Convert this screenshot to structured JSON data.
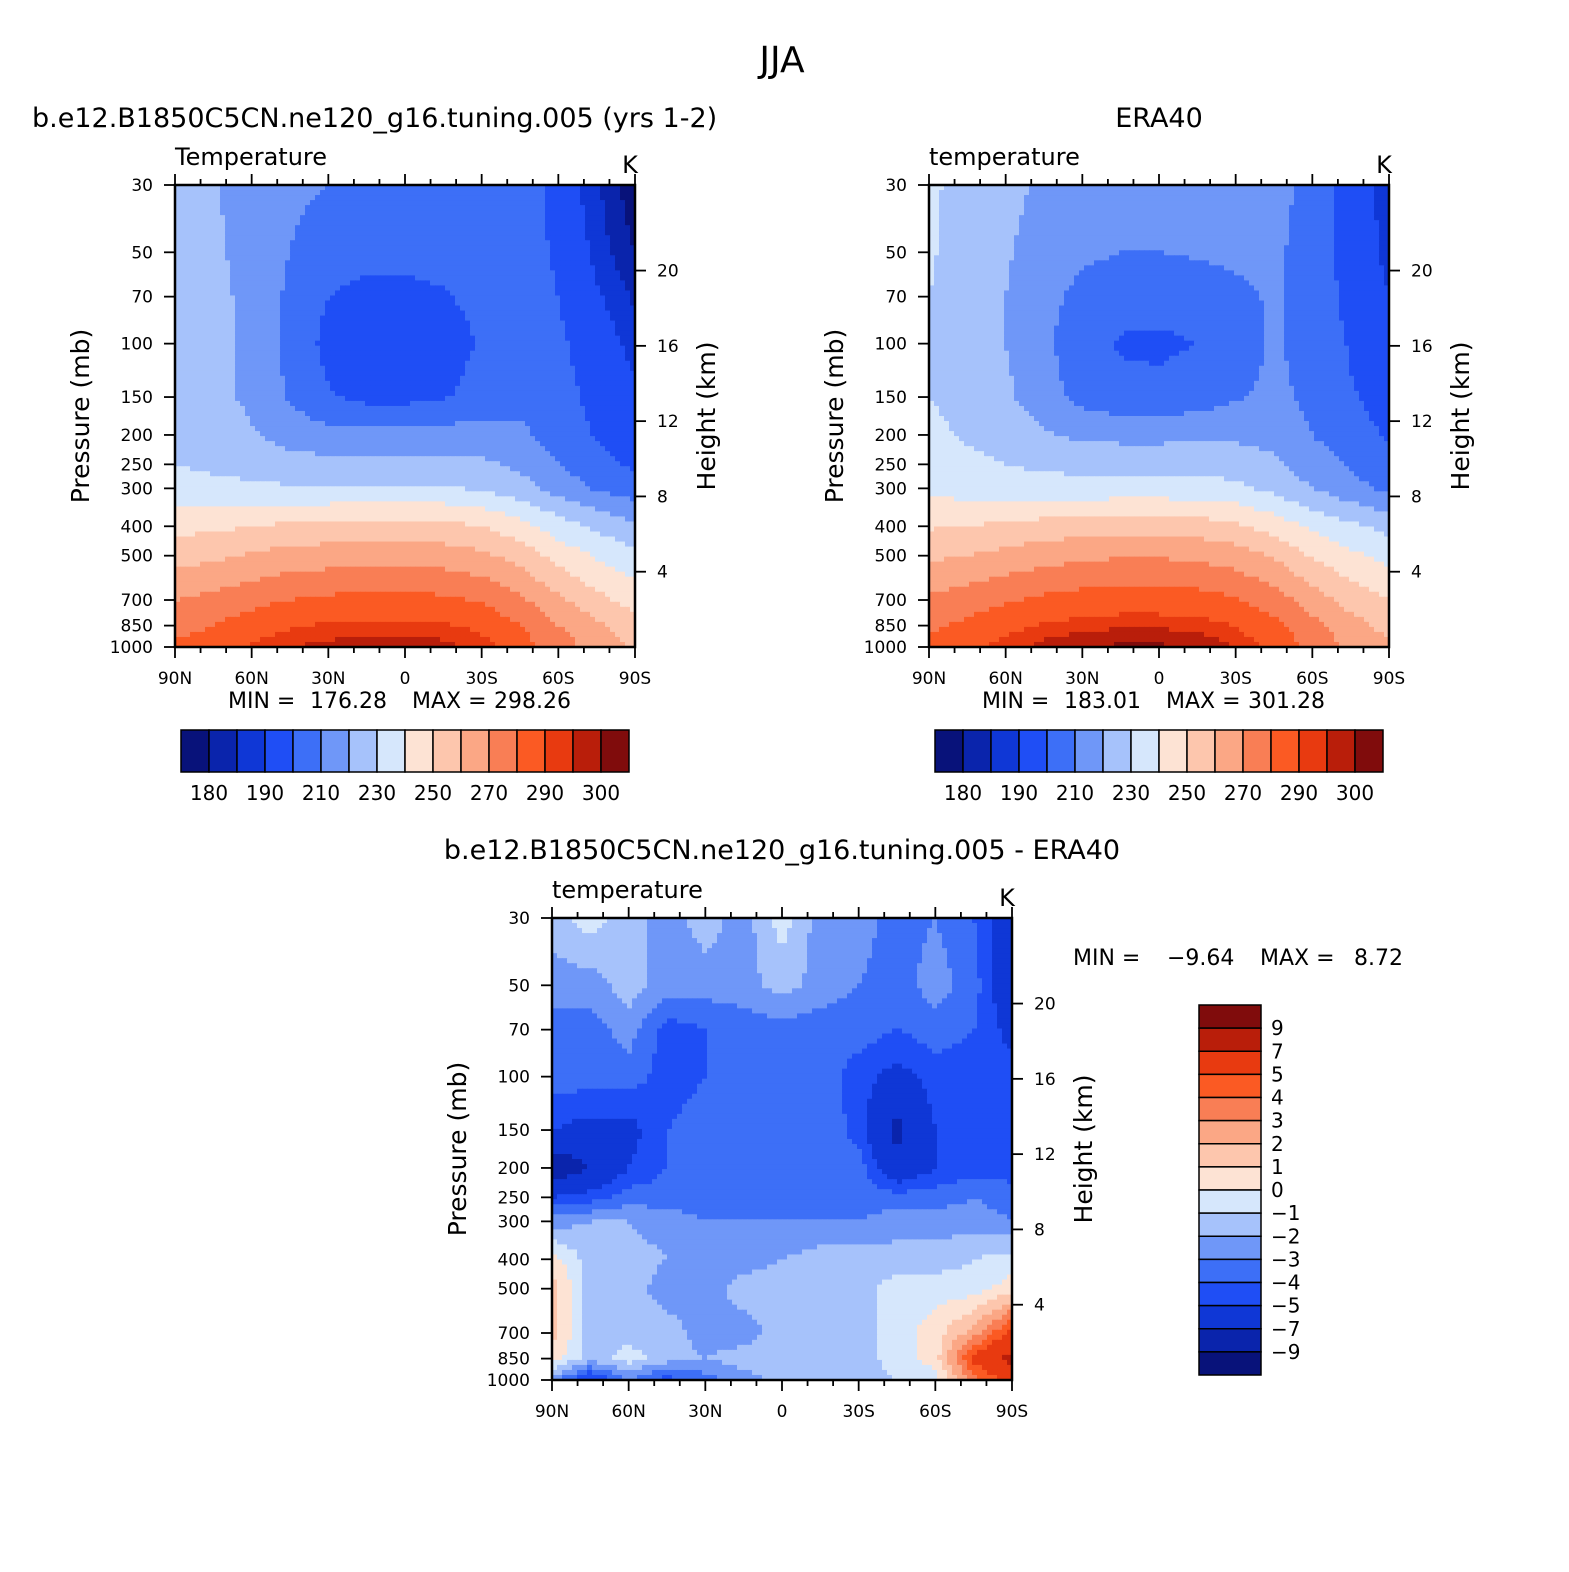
{
  "figure": {
    "title": "JJA"
  },
  "panel_titles": {
    "model": "b.e12.B1850C5CN.ne120_g16.tuning.005 (yrs 1-2)",
    "obs": "ERA40",
    "diff": "b.e12.B1850C5CN.ne120_g16.tuning.005 - ERA40"
  },
  "palettes": {
    "abs": [
      "#08127a",
      "#0a24ac",
      "#0f37d6",
      "#1f4ef5",
      "#3d6ff7",
      "#6f97f8",
      "#a6c2fb",
      "#d6e7fc",
      "#fde3d4",
      "#fdc6ad",
      "#fba785",
      "#f97e55",
      "#fb5a23",
      "#e83a10",
      "#b91e0a",
      "#800c0c"
    ],
    "diff": [
      "#08127a",
      "#0a24ac",
      "#0f37d6",
      "#1f4ef5",
      "#3d6ff7",
      "#6f97f8",
      "#a6c2fb",
      "#d6e7fc",
      "#fde3d4",
      "#fdc6ad",
      "#fba785",
      "#f97e55",
      "#fb5a23",
      "#e83a10",
      "#b91e0a",
      "#800c0c"
    ]
  },
  "colorbars": {
    "abs_labels": [
      "180",
      "190",
      "210",
      "230",
      "250",
      "270",
      "290",
      "300"
    ],
    "diff_labels": [
      "9",
      "7",
      "5",
      "4",
      "3",
      "2",
      "1",
      "0",
      "−1",
      "−2",
      "−3",
      "−4",
      "−5",
      "−7",
      "−9"
    ]
  },
  "chart_data": [
    {
      "type": "heatmap",
      "id": "model",
      "title": "b.e12.B1850C5CN.ne120_g16.tuning.005 (yrs 1-2)",
      "variable": "Temperature",
      "units": "K",
      "ylabel": "Pressure (mb)",
      "y2label": "Height (km)",
      "x_ticks": [
        "90N",
        "60N",
        "30N",
        "0",
        "30S",
        "60S",
        "90S"
      ],
      "y_ticks": [
        "30",
        "50",
        "70",
        "100",
        "150",
        "200",
        "250",
        "300",
        "400",
        "500",
        "700",
        "850",
        "1000"
      ],
      "y2_ticks": [
        "20",
        "16",
        "12",
        "8",
        "4"
      ],
      "min": "176.28",
      "max": "298.26",
      "min_label": "MIN =",
      "max_label": "MAX =",
      "levels": [
        180,
        185,
        190,
        200,
        210,
        220,
        230,
        240,
        250,
        260,
        270,
        280,
        290,
        295,
        300
      ],
      "x_lat": [
        90,
        75,
        60,
        45,
        30,
        15,
        0,
        -15,
        -30,
        -45,
        -60,
        -75,
        -90
      ],
      "y_pressure": [
        30,
        50,
        70,
        100,
        150,
        200,
        250,
        300,
        400,
        500,
        700,
        850,
        1000
      ],
      "z": [
        [
          226,
          221,
          215,
          212,
          210,
          209,
          209,
          209,
          210,
          208,
          195,
          186,
          176
        ],
        [
          226,
          222,
          216,
          210,
          205,
          203,
          203,
          204,
          206,
          206,
          198,
          188,
          180
        ],
        [
          226,
          223,
          217,
          208,
          200,
          197,
          197,
          199,
          203,
          206,
          200,
          191,
          184
        ],
        [
          226,
          223,
          217,
          207,
          197,
          193,
          193,
          195,
          201,
          206,
          202,
          194,
          188
        ],
        [
          226,
          223,
          218,
          209,
          201,
          197,
          197,
          199,
          204,
          207,
          204,
          197,
          191
        ],
        [
          227,
          225,
          221,
          216,
          213,
          213,
          213,
          214,
          214,
          212,
          206,
          199,
          194
        ],
        [
          230,
          228,
          226,
          224,
          223,
          223,
          223,
          223,
          222,
          218,
          210,
          204,
          198
        ],
        [
          234,
          233,
          232,
          231,
          231,
          231,
          231,
          231,
          229,
          224,
          216,
          209,
          204
        ],
        [
          247,
          248,
          250,
          252,
          253,
          254,
          254,
          253,
          250,
          244,
          235,
          228,
          222
        ],
        [
          256,
          258,
          261,
          264,
          265,
          266,
          266,
          265,
          262,
          256,
          246,
          239,
          233
        ],
        [
          270,
          273,
          277,
          280,
          282,
          283,
          283,
          282,
          279,
          272,
          262,
          253,
          246
        ],
        [
          276,
          280,
          285,
          289,
          291,
          292,
          292,
          291,
          288,
          280,
          270,
          262,
          254
        ],
        [
          282,
          286,
          291,
          295,
          297,
          298,
          298,
          297,
          293,
          285,
          275,
          266,
          258
        ]
      ]
    },
    {
      "type": "heatmap",
      "id": "obs",
      "title": "ERA40",
      "variable": "temperature",
      "units": "K",
      "ylabel": "Pressure (mb)",
      "y2label": "Height (km)",
      "x_ticks": [
        "90N",
        "60N",
        "30N",
        "0",
        "30S",
        "60S",
        "90S"
      ],
      "y_ticks": [
        "30",
        "50",
        "70",
        "100",
        "150",
        "200",
        "250",
        "300",
        "400",
        "500",
        "700",
        "850",
        "1000"
      ],
      "y2_ticks": [
        "20",
        "16",
        "12",
        "8",
        "4"
      ],
      "min": "183.01",
      "max": "301.28",
      "min_label": "MIN =",
      "max_label": "MAX =",
      "levels": [
        180,
        185,
        190,
        200,
        210,
        220,
        230,
        240,
        250,
        260,
        270,
        280,
        290,
        295,
        300
      ],
      "x_lat": [
        90,
        75,
        60,
        45,
        30,
        15,
        0,
        -15,
        -30,
        -45,
        -60,
        -75,
        -90
      ],
      "y_pressure": [
        30,
        50,
        70,
        100,
        150,
        200,
        250,
        300,
        400,
        500,
        700,
        850,
        1000
      ],
      "z": [
        [
          232,
          226,
          222,
          219,
          217,
          216,
          216,
          216,
          217,
          215,
          205,
          196,
          186
        ],
        [
          231,
          226,
          221,
          216,
          212,
          210,
          210,
          211,
          212,
          212,
          205,
          196,
          188
        ],
        [
          230,
          226,
          220,
          213,
          207,
          204,
          204,
          205,
          208,
          211,
          206,
          197,
          190
        ],
        [
          230,
          226,
          220,
          212,
          204,
          199,
          198,
          200,
          206,
          211,
          207,
          199,
          193
        ],
        [
          230,
          227,
          222,
          214,
          207,
          203,
          203,
          205,
          209,
          212,
          208,
          201,
          196
        ],
        [
          232,
          229,
          226,
          221,
          218,
          217,
          217,
          218,
          218,
          216,
          210,
          204,
          199
        ],
        [
          234,
          232,
          230,
          228,
          227,
          227,
          227,
          227,
          226,
          222,
          215,
          209,
          204
        ],
        [
          237,
          236,
          235,
          234,
          234,
          234,
          234,
          234,
          232,
          227,
          220,
          213,
          208
        ],
        [
          249,
          250,
          252,
          254,
          255,
          256,
          256,
          255,
          252,
          246,
          238,
          232,
          227
        ],
        [
          258,
          260,
          263,
          266,
          268,
          269,
          269,
          268,
          265,
          259,
          249,
          242,
          237
        ],
        [
          272,
          275,
          279,
          282,
          284,
          285,
          285,
          284,
          281,
          275,
          265,
          256,
          250
        ],
        [
          278,
          282,
          287,
          291,
          293,
          294,
          294,
          293,
          290,
          283,
          273,
          264,
          257
        ],
        [
          284,
          288,
          293,
          297,
          300,
          301,
          301,
          299,
          295,
          287,
          277,
          268,
          261
        ]
      ]
    },
    {
      "type": "heatmap",
      "id": "diff",
      "title": "b.e12.B1850C5CN.ne120_g16.tuning.005 - ERA40",
      "variable": "temperature",
      "units": "K",
      "ylabel": "Pressure (mb)",
      "y2label": "Height (km)",
      "x_ticks": [
        "90N",
        "60N",
        "30N",
        "0",
        "30S",
        "60S",
        "90S"
      ],
      "y_ticks": [
        "30",
        "50",
        "70",
        "100",
        "150",
        "200",
        "250",
        "300",
        "400",
        "500",
        "700",
        "850",
        "1000"
      ],
      "y2_ticks": [
        "20",
        "16",
        "12",
        "8",
        "4"
      ],
      "min": "−9.64",
      "max": "8.72",
      "min_label": "MIN =",
      "max_label": "MAX =",
      "levels": [
        -9,
        -7,
        -5,
        -4,
        -3,
        -2,
        -1,
        0,
        1,
        2,
        3,
        4,
        5,
        7,
        9
      ],
      "x_lat": [
        90,
        75,
        60,
        45,
        30,
        15,
        0,
        -15,
        -30,
        -45,
        -60,
        -75,
        -90
      ],
      "y_pressure": [
        30,
        50,
        70,
        100,
        150,
        200,
        250,
        300,
        400,
        500,
        700,
        850,
        1000
      ],
      "z": [
        [
          -1.5,
          -0.5,
          -1.5,
          -2.5,
          -1.5,
          -2.5,
          -0.5,
          -2.5,
          -2.5,
          -3.5,
          -3.0,
          -4.0,
          -6.0
        ],
        [
          -2.5,
          -2.5,
          -1.5,
          -2.5,
          -2.5,
          -2.5,
          -1.5,
          -2.5,
          -3.0,
          -3.5,
          -2.5,
          -3.5,
          -6.5
        ],
        [
          -3.5,
          -3.5,
          -2.5,
          -4.5,
          -4.0,
          -3.5,
          -3.5,
          -3.5,
          -3.5,
          -4.0,
          -3.5,
          -4.0,
          -5.5
        ],
        [
          -3.5,
          -3.5,
          -3.5,
          -4.5,
          -4.0,
          -3.5,
          -3.5,
          -3.5,
          -4.5,
          -5.5,
          -4.5,
          -4.5,
          -4.5
        ],
        [
          -5.0,
          -5.5,
          -5.5,
          -4.0,
          -3.5,
          -3.5,
          -3.5,
          -3.0,
          -4.5,
          -7.5,
          -5.0,
          -4.5,
          -4.5
        ],
        [
          -8.5,
          -7.0,
          -5.0,
          -4.0,
          -3.5,
          -3.0,
          -3.5,
          -3.5,
          -3.5,
          -6.5,
          -5.0,
          -4.5,
          -4.5
        ],
        [
          -5.0,
          -4.5,
          -3.5,
          -3.5,
          -3.5,
          -3.5,
          -3.5,
          -3.5,
          -3.5,
          -3.5,
          -3.5,
          -3.0,
          -3.5
        ],
        [
          -2.5,
          -2.0,
          -2.0,
          -2.5,
          -3.0,
          -3.0,
          -3.0,
          -3.0,
          -3.0,
          -2.5,
          -2.5,
          -2.5,
          -3.0
        ],
        [
          0.5,
          -1.5,
          -1.5,
          -2.0,
          -2.5,
          -2.5,
          -2.0,
          -1.5,
          -1.5,
          -1.5,
          -1.5,
          -1.0,
          -0.5
        ],
        [
          1.5,
          -1.5,
          -1.5,
          -2.5,
          -2.5,
          -1.5,
          -1.5,
          -1.5,
          -1.5,
          -0.5,
          -0.5,
          -0.5,
          0.5
        ],
        [
          1.5,
          -1.5,
          -1.5,
          -1.5,
          -2.5,
          -2.5,
          -1.5,
          -1.5,
          -1.5,
          -0.5,
          0.5,
          2.5,
          5.5
        ],
        [
          0.5,
          -1.5,
          -0.5,
          -1.5,
          -2.0,
          -1.5,
          -1.5,
          -1.5,
          -1.5,
          -0.5,
          0.5,
          5.5,
          7.5
        ],
        [
          -2.5,
          -5.5,
          -3.0,
          -4.5,
          -3.5,
          -2.5,
          -1.5,
          -1.5,
          -1.5,
          -1.0,
          -0.5,
          3.5,
          5.5
        ]
      ]
    }
  ]
}
